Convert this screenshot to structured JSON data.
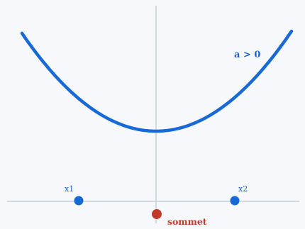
{
  "diagram": {
    "condition_label": "a > 0",
    "root1_label": "x1",
    "root2_label": "x2",
    "vertex_label": "sommet",
    "colors": {
      "background": "#f7f8fb",
      "axis": "#c9d0dc",
      "curve": "#1769d6",
      "roots": "#1769d6",
      "vertex": "#c0392b"
    }
  }
}
